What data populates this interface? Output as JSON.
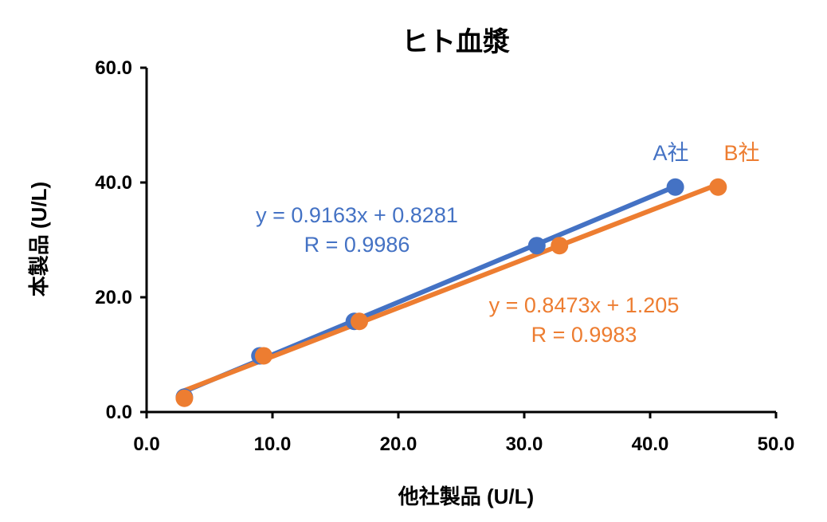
{
  "chart_data": {
    "type": "scatter",
    "title": "ヒト血漿",
    "xlabel": "他社製品 (U/L)",
    "ylabel": "本製品 (U/L)",
    "xlim": [
      0,
      50
    ],
    "ylim": [
      0,
      60
    ],
    "x_ticks": [
      "0.0",
      "10.0",
      "20.0",
      "30.0",
      "40.0",
      "50.0"
    ],
    "y_ticks": [
      "0.0",
      "20.0",
      "40.0",
      "60.0"
    ],
    "grid": false,
    "legend": "none",
    "series": [
      {
        "name": "A社",
        "color": "#4472C4",
        "points": [
          [
            3.0,
            2.6
          ],
          [
            9.0,
            9.8
          ],
          [
            16.5,
            15.8
          ],
          [
            31.0,
            29.0
          ],
          [
            42.0,
            39.2
          ]
        ],
        "trendline": {
          "slope": 0.9163,
          "intercept": 0.8281
        },
        "equation": "y = 0.9163x + 0.8281",
        "r_label": "R = 0.9986"
      },
      {
        "name": "B社",
        "color": "#ED7D31",
        "points": [
          [
            3.0,
            2.4
          ],
          [
            9.3,
            9.8
          ],
          [
            16.9,
            15.8
          ],
          [
            32.8,
            29.0
          ],
          [
            45.4,
            39.2
          ]
        ],
        "trendline": {
          "slope": 0.8473,
          "intercept": 1.205
        },
        "equation": "y = 0.8473x + 1.205",
        "r_label": "R = 0.9983"
      }
    ]
  }
}
